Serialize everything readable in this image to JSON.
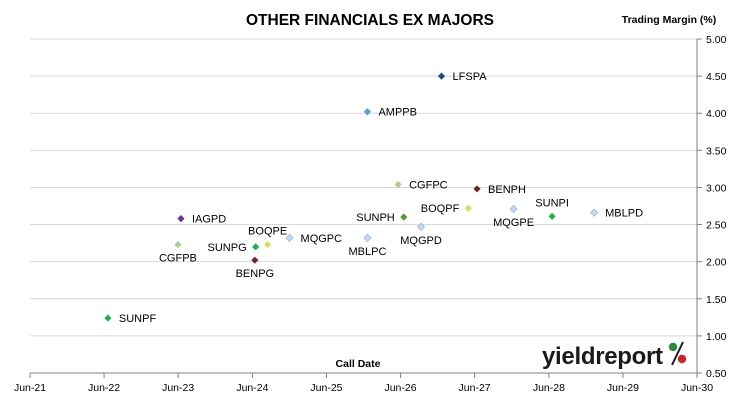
{
  "chart_data": {
    "type": "scatter",
    "title": "OTHER FINANCIALS EX MAJORS",
    "xlabel": "Call Date",
    "ylabel": "Trading Margin (%)",
    "x_ticks": [
      "Jun-21",
      "Jun-22",
      "Jun-23",
      "Jun-24",
      "Jun-25",
      "Jun-26",
      "Jun-27",
      "Jun-28",
      "Jun-29",
      "Jun-30"
    ],
    "xlim": [
      "Jun-21",
      "Jun-30"
    ],
    "y_ticks": [
      "0.50",
      "1.00",
      "1.50",
      "2.00",
      "2.50",
      "3.00",
      "3.50",
      "4.00",
      "4.50",
      "5.00"
    ],
    "ylim": [
      0.5,
      5.0
    ],
    "y_axis_position": "right",
    "grid": "horizontal",
    "legend": "none",
    "points": [
      {
        "label": "SUNPF",
        "x": "2022-06-20",
        "y": 1.24,
        "color": "#1db34a",
        "label_side": "right"
      },
      {
        "label": "CGFPB",
        "x": "2023-05-31",
        "y": 2.23,
        "color": "#a9d18e",
        "label_side": "below"
      },
      {
        "label": "IAGPD",
        "x": "2023-06-15",
        "y": 2.58,
        "color": "#7030a0",
        "label_side": "right"
      },
      {
        "label": "SUNPG",
        "x": "2024-06-17",
        "y": 2.2,
        "color": "#1db34a",
        "label_side": "left"
      },
      {
        "label": "BENPG",
        "x": "2024-06-13",
        "y": 2.02,
        "color": "#6b2a2a",
        "label_side": "below"
      },
      {
        "label": "BOQPE",
        "x": "2024-08-15",
        "y": 2.23,
        "color": "#d4e157",
        "label_side": "above"
      },
      {
        "label": "MQGPC",
        "x": "2024-12-01",
        "y": 2.32,
        "color": "#c5d9f1",
        "label_side": "right"
      },
      {
        "label": "AMPPB",
        "x": "2025-12-20",
        "y": 4.02,
        "color": "#5b9bd5",
        "label_side": "right"
      },
      {
        "label": "MBLPC",
        "x": "2025-12-20",
        "y": 2.32,
        "color": "#c5d9f1",
        "label_side": "below"
      },
      {
        "label": "SUNPH",
        "x": "2026-06-17",
        "y": 2.6,
        "color": "#4e9a3a",
        "label_side": "left"
      },
      {
        "label": "CGFPC",
        "x": "2026-05-20",
        "y": 3.04,
        "color": "#a9d18e",
        "label_side": "right"
      },
      {
        "label": "MQGPD",
        "x": "2026-09-10",
        "y": 2.47,
        "color": "#c5d9f1",
        "label_side": "below"
      },
      {
        "label": "LFSPA",
        "x": "2026-12-20",
        "y": 4.5,
        "color": "#1f4e79",
        "label_side": "right"
      },
      {
        "label": "BOQPF",
        "x": "2027-05-01",
        "y": 2.72,
        "color": "#d4e157",
        "label_side": "left"
      },
      {
        "label": "BENPH",
        "x": "2027-06-13",
        "y": 2.98,
        "color": "#6b2a2a",
        "label_side": "right"
      },
      {
        "label": "MQGPE",
        "x": "2027-12-10",
        "y": 2.71,
        "color": "#c5d9f1",
        "label_side": "below"
      },
      {
        "label": "SUNPI",
        "x": "2028-06-17",
        "y": 2.61,
        "color": "#1db34a",
        "label_side": "above"
      },
      {
        "label": "MBLPD",
        "x": "2029-01-10",
        "y": 2.66,
        "color": "#c5d9f1",
        "label_side": "right"
      }
    ]
  },
  "branding": {
    "logo_text": "yieldreport",
    "logo_symbol": "%",
    "word_color": "#1a1a1a",
    "symbol_top_color": "#2e8b3e",
    "symbol_bottom_color": "#cc2229"
  }
}
